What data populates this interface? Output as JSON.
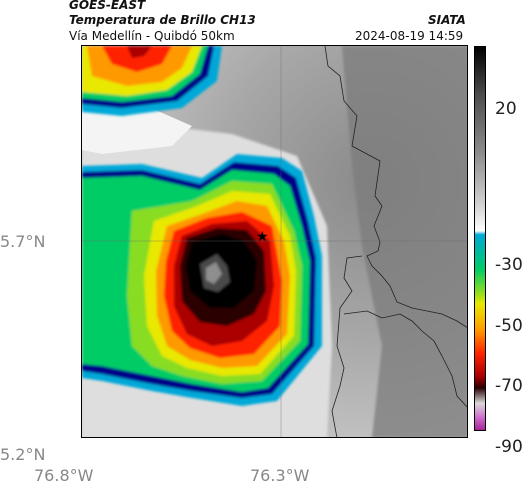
{
  "header": {
    "satellite": "GOES-EAST",
    "product": "Temperatura de Brillo CH13",
    "region": "Vía Medellín - Quibdó 50km",
    "agency": "SIATA",
    "datetime": "2024-08-19 14:59"
  },
  "axes": {
    "lat_labels": [
      "5.7°N",
      "5.2°N"
    ],
    "lon_labels": [
      "76.8°W",
      "76.3°W"
    ]
  },
  "colorbar": {
    "labels": [
      "20",
      "-30",
      "-50",
      "-70",
      "-90"
    ],
    "colors": [
      "#000000",
      "#4a4a4a",
      "#8e8e8e",
      "#d6d6d6",
      "#ffffff",
      "#00a8d8",
      "#00cc66",
      "#88dd22",
      "#e8e800",
      "#ff9900",
      "#ff2200",
      "#aa0000",
      "#2a0000",
      "#d8d8d8",
      "#cc66cc",
      "#aa2299"
    ]
  },
  "marker": {
    "symbol": "★"
  }
}
